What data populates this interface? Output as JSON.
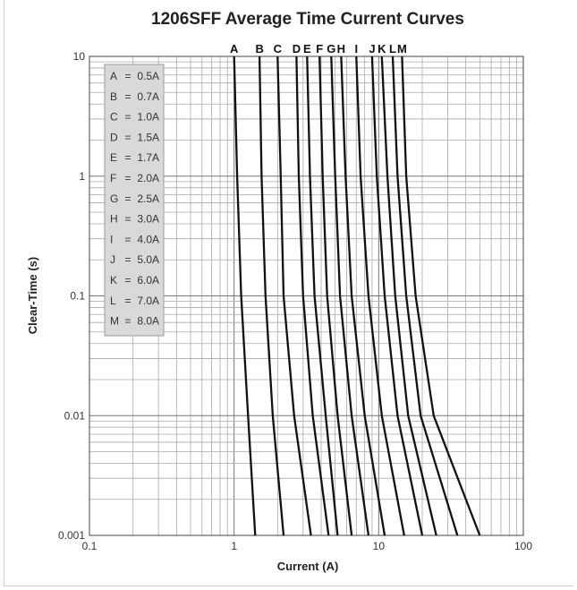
{
  "chart_data": {
    "type": "line",
    "title": "1206SFF Average Time Current Curves",
    "xlabel": "Current (A)",
    "ylabel": "Clear-Time (s)",
    "xscale": "log",
    "yscale": "log",
    "xlim": [
      0.1,
      100
    ],
    "ylim": [
      0.001,
      10
    ],
    "x_ticks": [
      "0.1",
      "1",
      "10",
      "100"
    ],
    "y_ticks": [
      "0.001",
      "0.01",
      "0.1",
      "1",
      "10"
    ],
    "grid": true,
    "legend_position": "top-left",
    "legend": [
      {
        "key": "A",
        "eq": "=",
        "value": "0.5A"
      },
      {
        "key": "B",
        "eq": "=",
        "value": "0.7A"
      },
      {
        "key": "C",
        "eq": "=",
        "value": "1.0A"
      },
      {
        "key": "D",
        "eq": "=",
        "value": "1.5A"
      },
      {
        "key": "E",
        "eq": "=",
        "value": "1.7A"
      },
      {
        "key": "F",
        "eq": "=",
        "value": "2.0A"
      },
      {
        "key": "G",
        "eq": "=",
        "value": "2.5A"
      },
      {
        "key": "H",
        "eq": "=",
        "value": "3.0A"
      },
      {
        "key": "I",
        "eq": "=",
        "value": "4.0A"
      },
      {
        "key": "J",
        "eq": "=",
        "value": "5.0A"
      },
      {
        "key": "K",
        "eq": "=",
        "value": "6.0A"
      },
      {
        "key": "L",
        "eq": "=",
        "value": "7.0A"
      },
      {
        "key": "M",
        "eq": "=",
        "value": "8.0A"
      }
    ],
    "series": [
      {
        "name": "A",
        "points": [
          [
            1.0,
            10
          ],
          [
            1.05,
            1
          ],
          [
            1.12,
            0.1
          ],
          [
            1.25,
            0.01
          ],
          [
            1.4,
            0.001
          ]
        ]
      },
      {
        "name": "B",
        "points": [
          [
            1.5,
            10
          ],
          [
            1.55,
            1
          ],
          [
            1.65,
            0.1
          ],
          [
            1.85,
            0.01
          ],
          [
            2.2,
            0.001
          ]
        ]
      },
      {
        "name": "C",
        "points": [
          [
            2.0,
            10
          ],
          [
            2.1,
            1
          ],
          [
            2.2,
            0.1
          ],
          [
            2.6,
            0.01
          ],
          [
            3.4,
            0.001
          ]
        ]
      },
      {
        "name": "D",
        "points": [
          [
            2.7,
            10
          ],
          [
            2.8,
            1
          ],
          [
            3.0,
            0.1
          ],
          [
            3.5,
            0.01
          ],
          [
            4.5,
            0.001
          ]
        ]
      },
      {
        "name": "E",
        "points": [
          [
            3.2,
            10
          ],
          [
            3.35,
            1
          ],
          [
            3.6,
            0.1
          ],
          [
            4.3,
            0.01
          ],
          [
            5.2,
            0.001
          ]
        ]
      },
      {
        "name": "F",
        "points": [
          [
            3.9,
            10
          ],
          [
            4.1,
            1
          ],
          [
            4.4,
            0.1
          ],
          [
            5.2,
            0.01
          ],
          [
            6.5,
            0.001
          ]
        ]
      },
      {
        "name": "G",
        "points": [
          [
            4.7,
            10
          ],
          [
            5.0,
            1
          ],
          [
            5.4,
            0.1
          ],
          [
            6.5,
            0.01
          ],
          [
            8.5,
            0.001
          ]
        ]
      },
      {
        "name": "H",
        "points": [
          [
            5.5,
            10
          ],
          [
            5.9,
            1
          ],
          [
            6.5,
            0.1
          ],
          [
            8.0,
            0.01
          ],
          [
            11,
            0.001
          ]
        ]
      },
      {
        "name": "I",
        "points": [
          [
            7.0,
            10
          ],
          [
            7.5,
            1
          ],
          [
            8.5,
            0.1
          ],
          [
            10.5,
            0.01
          ],
          [
            15,
            0.001
          ]
        ]
      },
      {
        "name": "J",
        "points": [
          [
            9.0,
            10
          ],
          [
            9.7,
            1
          ],
          [
            11,
            0.1
          ],
          [
            13.5,
            0.01
          ],
          [
            20,
            0.001
          ]
        ]
      },
      {
        "name": "K",
        "points": [
          [
            10.5,
            10
          ],
          [
            11.5,
            1
          ],
          [
            13,
            0.1
          ],
          [
            16,
            0.01
          ],
          [
            25,
            0.001
          ]
        ]
      },
      {
        "name": "L",
        "points": [
          [
            12.5,
            10
          ],
          [
            13.5,
            1
          ],
          [
            15.5,
            0.1
          ],
          [
            19.5,
            0.01
          ],
          [
            35,
            0.001
          ]
        ]
      },
      {
        "name": "M",
        "points": [
          [
            14.5,
            10
          ],
          [
            15.5,
            1
          ],
          [
            18,
            0.1
          ],
          [
            24,
            0.01
          ],
          [
            50,
            0.001
          ]
        ]
      }
    ]
  }
}
